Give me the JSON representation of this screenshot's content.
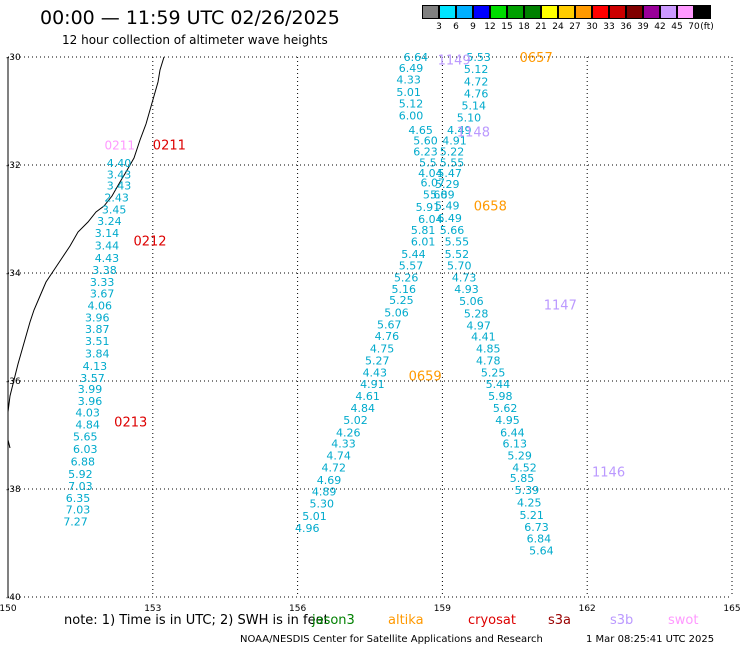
{
  "header": {
    "title": "00:00 — 11:59 UTC 02/26/2025",
    "subtitle": "12 hour collection of altimeter wave heights"
  },
  "scale": {
    "unit": "(ft)",
    "labels": [
      "3",
      "6",
      "9",
      "12",
      "15",
      "18",
      "21",
      "24",
      "27",
      "30",
      "33",
      "36",
      "39",
      "42",
      "45",
      "70"
    ],
    "colors": [
      "#808080",
      "#00e5ff",
      "#00b0ff",
      "#0000ff",
      "#00dd00",
      "#00a000",
      "#008000",
      "#ffff00",
      "#ffcc00",
      "#ff9900",
      "#ff0000",
      "#cc0000",
      "#800000",
      "#990099",
      "#cc99ff",
      "#ff99ff",
      "#000000"
    ]
  },
  "axes": {
    "x_ticks": [
      "150",
      "153",
      "156",
      "159",
      "162",
      "165"
    ],
    "y_ticks": [
      "-30",
      "-32",
      "-34",
      "-36",
      "-38",
      "-40"
    ]
  },
  "chart_data": {
    "type": "scatter",
    "xlim": [
      150,
      165
    ],
    "ylim": [
      -40,
      -30
    ],
    "grid": true,
    "passes": [
      {
        "label": "0211",
        "color": "#dd0000",
        "label_pos": [
          153.0,
          -31.62
        ],
        "points": [
          [
            152.3,
            -31.96,
            "4.40"
          ],
          [
            152.3,
            -32.18,
            "3.43"
          ],
          [
            152.3,
            -32.38,
            "3.43"
          ],
          [
            152.25,
            -32.6,
            "2.43"
          ],
          [
            152.2,
            -32.82,
            "3.45"
          ],
          [
            152.1,
            -33.04,
            "3.24"
          ],
          [
            152.05,
            -33.26,
            "3.14"
          ],
          [
            152.05,
            -33.49,
            "3.44"
          ],
          [
            152.05,
            -33.72,
            "4.43"
          ],
          [
            152.0,
            -33.94,
            "3.38"
          ],
          [
            151.95,
            -34.17,
            "3.33"
          ],
          [
            151.95,
            -34.38,
            "3.67"
          ],
          [
            151.9,
            -34.6,
            "4.06"
          ],
          [
            151.85,
            -34.82,
            "3.96"
          ],
          [
            151.85,
            -35.04,
            "3.87"
          ],
          [
            151.85,
            -35.26,
            "3.51"
          ],
          [
            151.85,
            -35.49,
            "3.84"
          ],
          [
            151.8,
            -35.72,
            "4.13"
          ],
          [
            151.75,
            -35.94,
            "3.57"
          ],
          [
            151.7,
            -36.15,
            "3.99"
          ],
          [
            151.7,
            -36.37,
            "3.96"
          ],
          [
            151.65,
            -36.58,
            "4.03"
          ],
          [
            151.65,
            -36.81,
            "4.84"
          ],
          [
            151.6,
            -37.03,
            "5.65"
          ],
          [
            151.6,
            -37.26,
            "6.03"
          ],
          [
            151.55,
            -37.49,
            "6.88"
          ],
          [
            151.5,
            -37.72,
            "5.92"
          ],
          [
            151.5,
            -37.94,
            "7.03"
          ],
          [
            151.45,
            -38.17,
            "6.35"
          ],
          [
            151.45,
            -38.38,
            "7.03"
          ],
          [
            151.4,
            -38.6,
            "7.27"
          ]
        ]
      },
      {
        "label": "0212",
        "color": "#dd0000",
        "label_pos": [
          152.6,
          -33.4
        ],
        "points": []
      },
      {
        "label": "0213",
        "color": "#dd0000",
        "label_pos": [
          152.2,
          -36.75
        ],
        "points": []
      },
      {
        "label": "0657",
        "color": "#ff9900",
        "label_pos": [
          160.6,
          -30.0
        ],
        "points": [
          [
            158.45,
            -30.0,
            "6.64"
          ],
          [
            158.35,
            -30.2,
            "6.49"
          ],
          [
            158.3,
            -30.42,
            "4.33"
          ],
          [
            158.3,
            -30.65,
            "5.01"
          ],
          [
            158.35,
            -30.86,
            "5.12"
          ],
          [
            158.35,
            -31.08,
            "6.00"
          ],
          [
            158.55,
            -31.35,
            "4.65"
          ],
          [
            158.65,
            -31.55,
            "5.60"
          ],
          [
            158.65,
            -31.75,
            "6.23"
          ],
          [
            158.7,
            -31.95,
            "5.5"
          ],
          [
            158.75,
            -32.15,
            "4.04"
          ],
          [
            158.8,
            -32.32,
            "6.07"
          ],
          [
            158.85,
            -32.55,
            "5.60"
          ]
        ]
      },
      {
        "label": "0658",
        "color": "#ff9900",
        "label_pos": [
          159.65,
          -32.75
        ],
        "points": [
          [
            158.7,
            -32.78,
            "5.91"
          ],
          [
            158.75,
            -33.0,
            "6.04"
          ],
          [
            158.6,
            -33.2,
            "5.81"
          ],
          [
            158.6,
            -33.42,
            "6.01"
          ],
          [
            158.4,
            -33.65,
            "5.44"
          ],
          [
            158.35,
            -33.86,
            "5.57"
          ],
          [
            158.25,
            -34.08,
            "5.26"
          ],
          [
            158.2,
            -34.3,
            "5.16"
          ],
          [
            158.15,
            -34.5,
            "5.25"
          ],
          [
            158.05,
            -34.73,
            "5.06"
          ],
          [
            157.9,
            -34.95,
            "5.67"
          ],
          [
            157.85,
            -35.17,
            "4.76"
          ],
          [
            157.75,
            -35.4,
            "4.75"
          ],
          [
            157.65,
            -35.62,
            "5.27"
          ],
          [
            157.6,
            -35.84,
            "4.43"
          ]
        ]
      },
      {
        "label": "0659",
        "color": "#ff9900",
        "label_pos": [
          158.3,
          -35.9
        ],
        "points": [
          [
            157.55,
            -36.06,
            "4.91"
          ],
          [
            157.45,
            -36.28,
            "4.61"
          ],
          [
            157.35,
            -36.5,
            "4.84"
          ],
          [
            157.2,
            -36.72,
            "5.02"
          ],
          [
            157.05,
            -36.95,
            "4.26"
          ],
          [
            156.95,
            -37.16,
            "4.33"
          ],
          [
            156.85,
            -37.38,
            "4.74"
          ],
          [
            156.75,
            -37.6,
            "4.72"
          ],
          [
            156.65,
            -37.83,
            "4.69"
          ],
          [
            156.55,
            -38.05,
            "4.89"
          ],
          [
            156.5,
            -38.27,
            "5.30"
          ],
          [
            156.35,
            -38.5,
            "5.01"
          ],
          [
            156.2,
            -38.72,
            "4.96"
          ]
        ]
      },
      {
        "label": "1149",
        "color": "#bb99ff",
        "label_pos": [
          158.9,
          -30.05
        ],
        "points": [
          [
            159.75,
            -30.0,
            "5.53"
          ],
          [
            159.7,
            -30.22,
            "5.12"
          ],
          [
            159.7,
            -30.45,
            "4.72"
          ],
          [
            159.7,
            -30.68,
            "4.76"
          ],
          [
            159.65,
            -30.9,
            "5.14"
          ],
          [
            159.55,
            -31.12,
            "5.10"
          ],
          [
            159.35,
            -31.35,
            "4.49"
          ],
          [
            159.25,
            -31.55,
            "4.91"
          ],
          [
            159.2,
            -31.75,
            "5.22"
          ],
          [
            159.2,
            -31.95,
            "5.55"
          ],
          [
            159.15,
            -32.15,
            "5.47"
          ],
          [
            159.1,
            -32.35,
            "5.29"
          ],
          [
            159.0,
            -32.55,
            "5.89"
          ]
        ]
      },
      {
        "label": "1148",
        "color": "#bb99ff",
        "label_pos": [
          159.3,
          -31.38
        ],
        "points": [
          [
            159.1,
            -32.75,
            "5.49"
          ],
          [
            159.15,
            -32.98,
            "6.49"
          ],
          [
            159.2,
            -33.2,
            "5.66"
          ],
          [
            159.3,
            -33.42,
            "5.55"
          ],
          [
            159.3,
            -33.65,
            "5.52"
          ],
          [
            159.35,
            -33.86,
            "5.70"
          ],
          [
            159.45,
            -34.08,
            "4.73"
          ],
          [
            159.5,
            -34.3,
            "4.93"
          ],
          [
            159.6,
            -34.52,
            "5.06"
          ],
          [
            159.7,
            -34.75,
            "5.28"
          ],
          [
            159.75,
            -34.97,
            "4.97"
          ],
          [
            159.85,
            -35.18,
            "4.41"
          ],
          [
            159.95,
            -35.4,
            "4.85"
          ],
          [
            159.95,
            -35.62,
            "4.78"
          ],
          [
            160.05,
            -35.84,
            "5.25"
          ],
          [
            160.15,
            -36.06,
            "5.44"
          ],
          [
            160.2,
            -36.28,
            "5.98"
          ],
          [
            160.3,
            -36.5,
            "5.62"
          ],
          [
            160.35,
            -36.72,
            "4.95"
          ],
          [
            160.45,
            -36.95,
            "6.44"
          ],
          [
            160.5,
            -37.16,
            "6.13"
          ],
          [
            160.6,
            -37.38,
            "5.29"
          ],
          [
            160.7,
            -37.6,
            "4.52"
          ]
        ]
      },
      {
        "label": "1147",
        "color": "#bb99ff",
        "label_pos": [
          161.1,
          -34.58
        ],
        "points": []
      },
      {
        "label": "1146",
        "color": "#bb99ff",
        "label_pos": [
          162.1,
          -37.68
        ],
        "points": [
          [
            160.65,
            -37.8,
            "5.85"
          ],
          [
            160.75,
            -38.02,
            "5.39"
          ],
          [
            160.8,
            -38.25,
            "4.25"
          ],
          [
            160.85,
            -38.48,
            "5.21"
          ],
          [
            160.95,
            -38.7,
            "6.73"
          ],
          [
            161.0,
            -38.92,
            "6.84"
          ],
          [
            161.05,
            -39.14,
            "5.64"
          ]
        ]
      }
    ],
    "extra_labels": [
      {
        "text": "0211",
        "color": "#ff99ff",
        "pos": [
          152.0,
          -31.62
        ]
      }
    ]
  },
  "footer": {
    "note": "note:  1) Time is in UTC; 2) SWH is in feet",
    "sats": [
      {
        "name": "jason3",
        "color": "#008000"
      },
      {
        "name": "altika",
        "color": "#ff9900"
      },
      {
        "name": "cryosat",
        "color": "#dd0000"
      },
      {
        "name": "s3a",
        "color": "#990000"
      },
      {
        "name": "s3b",
        "color": "#bb99ff"
      },
      {
        "name": "swot",
        "color": "#ff99ff"
      }
    ],
    "credit": "NOAA/NESDIS Center for Satellite Applications and Research",
    "timestamp": "1 Mar 08:25:41 UTC 2025"
  }
}
